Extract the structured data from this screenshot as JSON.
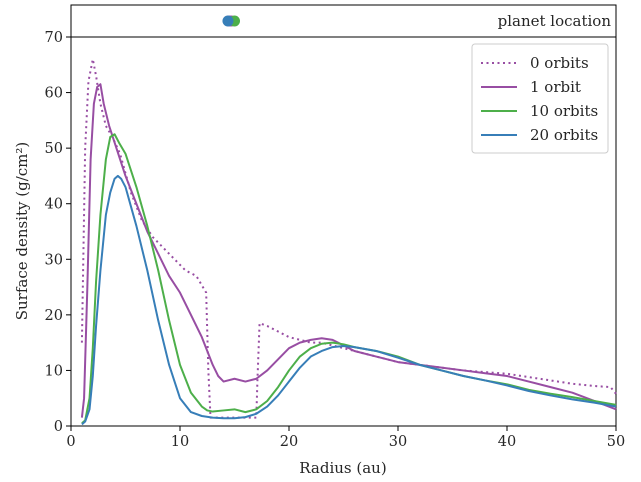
{
  "chart_data": [
    {
      "type": "scatter",
      "panel": "top",
      "annotation": "planet location",
      "points": [
        {
          "series": "0 orbits",
          "x": 14.5,
          "color": "#984ea3"
        },
        {
          "series": "1 orbit",
          "x": 14.7,
          "color": "#984ea3"
        },
        {
          "series": "10 orbits",
          "x": 15.0,
          "color": "#4daf4a"
        },
        {
          "series": "20 orbits",
          "x": 14.4,
          "color": "#377eb8"
        }
      ],
      "xlim": [
        0,
        50
      ]
    },
    {
      "type": "line",
      "panel": "main",
      "xlabel": "Radius (au)",
      "ylabel": "Surface density (g/cm²)",
      "xlim": [
        0,
        50
      ],
      "ylim": [
        0,
        70
      ],
      "xticks": [
        0,
        10,
        20,
        30,
        40,
        50
      ],
      "yticks": [
        0,
        10,
        20,
        30,
        40,
        50,
        60,
        70
      ],
      "grid": false,
      "legend_position": "top-right",
      "series": [
        {
          "name": "0 orbits",
          "color": "#984ea3",
          "style": "dotted",
          "x": [
            1.0,
            1.3,
            1.6,
            2.0,
            2.3,
            2.7,
            3.2,
            3.8,
            4.5,
            5.5,
            6.5,
            7.5,
            8.5,
            9.5,
            10.5,
            11.5,
            12.4,
            12.6,
            12.8,
            13.5,
            14.5,
            15.5,
            16.5,
            17.0,
            17.1,
            17.3,
            18.0,
            19.0,
            20.0,
            21.0,
            22.0,
            23.0,
            24.0,
            25.0,
            26.0,
            28.0,
            30.0,
            32.0,
            34.0,
            36.0,
            38.0,
            40.0,
            42.0,
            44.0,
            46.0,
            48.0,
            49.5,
            50.0
          ],
          "y": [
            15.0,
            50.0,
            62.0,
            66.0,
            63.0,
            58.0,
            54.0,
            52.0,
            49.0,
            42.0,
            37.0,
            34.0,
            32.0,
            30.0,
            28.0,
            27.0,
            24.0,
            10.0,
            1.5,
            1.5,
            1.5,
            1.5,
            1.5,
            1.5,
            8.0,
            18.5,
            18.0,
            17.0,
            16.0,
            15.5,
            15.0,
            15.0,
            14.5,
            14.0,
            13.5,
            12.5,
            11.5,
            11.0,
            10.5,
            10.0,
            9.7,
            9.4,
            8.8,
            8.2,
            7.6,
            7.2,
            7.0,
            5.8
          ]
        },
        {
          "name": "1 orbit",
          "color": "#984ea3",
          "style": "solid",
          "x": [
            1.0,
            1.2,
            1.5,
            1.8,
            2.1,
            2.4,
            2.7,
            3.0,
            3.5,
            4.0,
            5.0,
            6.0,
            7.0,
            8.0,
            9.0,
            10.0,
            11.0,
            12.0,
            13.0,
            13.5,
            14.0,
            15.0,
            16.0,
            17.0,
            18.0,
            19.0,
            20.0,
            21.0,
            22.0,
            23.0,
            24.0,
            25.0,
            26.0,
            28.0,
            30.0,
            32.0,
            34.0,
            36.0,
            38.0,
            40.0,
            42.0,
            44.0,
            46.0,
            48.0,
            50.0
          ],
          "y": [
            1.5,
            5.0,
            25.0,
            48.0,
            58.0,
            61.0,
            61.5,
            58.0,
            54.0,
            51.0,
            45.0,
            40.0,
            35.0,
            31.0,
            27.0,
            24.0,
            20.0,
            16.0,
            11.0,
            9.0,
            8.0,
            8.5,
            8.0,
            8.5,
            10.0,
            12.0,
            14.0,
            15.0,
            15.5,
            15.8,
            15.5,
            14.5,
            13.5,
            12.5,
            11.5,
            11.0,
            10.5,
            10.0,
            9.5,
            9.0,
            8.0,
            7.0,
            6.0,
            4.5,
            3.0
          ]
        },
        {
          "name": "10 orbits",
          "color": "#4daf4a",
          "style": "solid",
          "x": [
            1.0,
            1.3,
            1.7,
            2.0,
            2.3,
            2.7,
            3.2,
            3.6,
            4.0,
            4.4,
            5.0,
            6.0,
            7.0,
            8.0,
            9.0,
            10.0,
            11.0,
            12.0,
            12.5,
            13.0,
            14.0,
            15.0,
            16.0,
            17.0,
            18.0,
            19.0,
            20.0,
            21.0,
            22.0,
            23.0,
            24.0,
            25.0,
            26.0,
            28.0,
            30.0,
            32.0,
            34.0,
            36.0,
            38.0,
            40.0,
            42.0,
            44.0,
            46.0,
            48.0,
            50.0
          ],
          "y": [
            0.5,
            1.0,
            5.0,
            14.0,
            26.0,
            38.0,
            48.0,
            52.0,
            52.5,
            51.0,
            49.0,
            43.0,
            36.0,
            28.0,
            19.0,
            11.0,
            6.0,
            3.5,
            2.8,
            2.6,
            2.8,
            3.0,
            2.5,
            3.0,
            4.5,
            7.0,
            10.0,
            12.5,
            14.0,
            14.8,
            15.0,
            14.7,
            14.2,
            13.5,
            12.5,
            11.0,
            10.0,
            9.0,
            8.2,
            7.5,
            6.5,
            5.8,
            5.2,
            4.5,
            3.8
          ]
        },
        {
          "name": "20 orbits",
          "color": "#377eb8",
          "style": "solid",
          "x": [
            1.0,
            1.3,
            1.7,
            2.0,
            2.3,
            2.7,
            3.2,
            3.6,
            4.0,
            4.3,
            4.6,
            5.0,
            6.0,
            7.0,
            8.0,
            9.0,
            10.0,
            11.0,
            12.0,
            13.0,
            14.0,
            15.0,
            16.0,
            17.0,
            18.0,
            19.0,
            20.0,
            21.0,
            22.0,
            23.0,
            24.0,
            25.0,
            26.0,
            28.0,
            30.0,
            32.0,
            34.0,
            36.0,
            38.0,
            40.0,
            42.0,
            44.0,
            46.0,
            48.0,
            50.0
          ],
          "y": [
            0.3,
            0.8,
            3.0,
            9.0,
            18.0,
            28.0,
            38.0,
            42.0,
            44.5,
            45.0,
            44.5,
            43.0,
            36.0,
            28.0,
            19.0,
            11.0,
            5.0,
            2.5,
            1.8,
            1.5,
            1.4,
            1.4,
            1.6,
            2.2,
            3.5,
            5.5,
            8.0,
            10.5,
            12.5,
            13.5,
            14.2,
            14.4,
            14.2,
            13.5,
            12.3,
            11.0,
            10.0,
            9.0,
            8.2,
            7.3,
            6.3,
            5.5,
            4.8,
            4.2,
            3.5
          ]
        }
      ]
    }
  ]
}
